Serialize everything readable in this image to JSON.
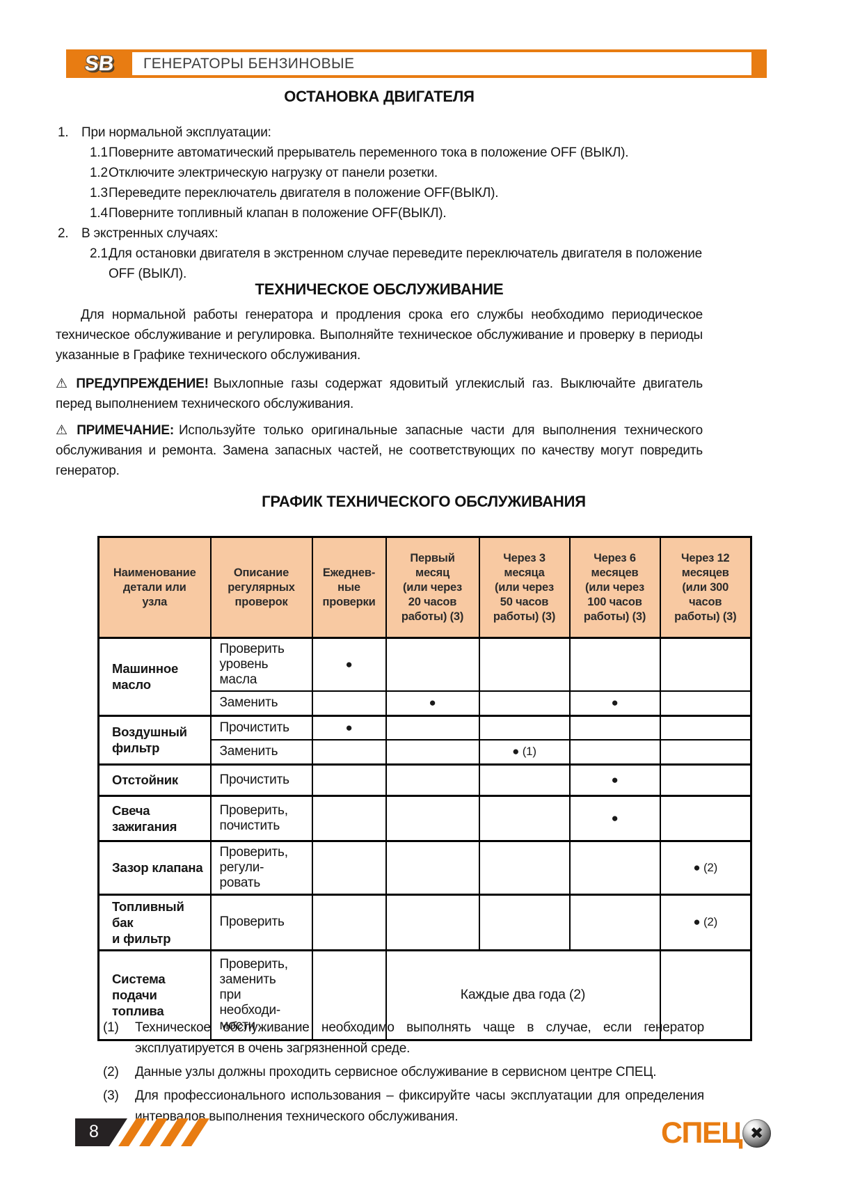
{
  "header": {
    "logo": "SB",
    "title": "ГЕНЕРАТОРЫ БЕНЗИНОВЫЕ"
  },
  "engine_stop": {
    "title": "ОСТАНОВКА ДВИГАТЕЛЯ",
    "items": [
      {
        "label": "1.",
        "text": "При нормальной эксплуатации:",
        "level": 0
      },
      {
        "label": "1.1",
        "text": "Поверните автоматический прерыватель переменного тока в положение OFF (ВЫКЛ).",
        "level": 1
      },
      {
        "label": "1.2",
        "text": "Отключите электрическую нагрузку от панели розетки.",
        "level": 1
      },
      {
        "label": "1.3",
        "text": "Переведите переключатель двигателя в положение OFF(ВЫКЛ).",
        "level": 1
      },
      {
        "label": "1.4",
        "text": "Поверните топливный клапан в положение OFF(ВЫКЛ).",
        "level": 1
      },
      {
        "label": "2.",
        "text": "В экстренных случаях:",
        "level": 0
      },
      {
        "label": "2.1",
        "text": "Для остановки двигателя в экстренном случае переведите переключатель двигателя в положение OFF (ВЫКЛ).",
        "level": 1
      }
    ]
  },
  "maintenance": {
    "title": "ТЕХНИЧЕСКОЕ ОБСЛУЖИВАНИЕ",
    "intro": "Для нормальной работы генератора и продления срока его службы необходимо периодическое техническое обслуживание и регулировка. Выполняйте техническое обслуживание и проверку в периоды указанные в Графике технического обслуживания.",
    "warning_icon": "⚠",
    "warning_label": "ПРЕДУПРЕЖДЕНИЕ!",
    "warning_text": "Выхлопные газы содержат ядовитый углекислый газ. Выключайте двигатель перед выполнением технического обслуживания.",
    "note_icon": "⚠",
    "note_label": "ПРИМЕЧАНИЕ:",
    "note_text": "Используйте только оригинальные запасные части для выполнения технического обслуживания и ремонта. Замена запасных частей, не соответствующих по качеству могут повредить генератор."
  },
  "schedule_table": {
    "title": "ГРАФИК ТЕХНИЧЕСКОГО ОБСЛУЖИВАНИЯ",
    "headers": [
      "Наименование\nдетали или\nузла",
      "Описание\nрегулярных\nпроверок",
      "Ежеднев-\nные\nпроверки",
      "Первый\nмесяц\n(или через\n20 часов\nработы) (3)",
      "Через 3\nмесяца\n(или через\n50 часов\nработы) (3)",
      "Через 6\nмесяцев\n(или через\n100 часов\nработы) (3)",
      "Через 12\nмесяцев\n(или 300\nчасов\nработы) (3)"
    ],
    "rows": [
      {
        "part": "Машинное\nмасло",
        "part_rowspan": 2,
        "desc": "Проверить\nуровень\nмасла",
        "marks": [
          "●",
          "",
          "",
          "",
          ""
        ],
        "group_start": true
      },
      {
        "desc": "Заменить",
        "marks": [
          "",
          "●",
          "",
          "●",
          ""
        ]
      },
      {
        "part": "Воздушный\nфильтр",
        "part_rowspan": 2,
        "desc": "Прочистить",
        "marks": [
          "●",
          "",
          "",
          "",
          ""
        ],
        "group_start": true
      },
      {
        "desc": "Заменить",
        "marks": [
          "",
          "",
          "● (1)",
          "",
          ""
        ]
      },
      {
        "part": "Отстойник",
        "desc": "Прочистить",
        "marks": [
          "",
          "",
          "",
          "●",
          ""
        ],
        "group_start": true
      },
      {
        "part": "Свеча\nзажигания",
        "desc": "Проверить,\nпочистить",
        "marks": [
          "",
          "",
          "",
          "●",
          ""
        ],
        "group_start": true
      },
      {
        "part": "Зазор клапана",
        "desc": "Проверить,\nрегули-\nровать",
        "marks": [
          "",
          "",
          "",
          "",
          "● (2)"
        ],
        "group_start": true
      },
      {
        "part": "Топливный бак\nи фильтр",
        "desc": "Проверить",
        "marks": [
          "",
          "",
          "",
          "",
          "● (2)"
        ],
        "group_start": true
      },
      {
        "part": "Система\nподачи\nтоплива",
        "desc": "Проверить,\nзаменить\nпри\nнеобходи-\nмости",
        "daily": "",
        "merged_text": "Каждые два года (2)",
        "last": "",
        "group_start": true
      }
    ]
  },
  "footnotes": [
    {
      "label": "(1)",
      "text": "Техническое обслуживание необходимо выполнять чаще в случае, если генератор эксплуатируется в очень загрязненной среде."
    },
    {
      "label": "(2)",
      "text": "Данные узлы должны проходить сервисное обслуживание в сервисном центре СПЕЦ."
    },
    {
      "label": "(3)",
      "text": "Для профессионального использования – фиксируйте часы эксплуатации для определения интервалов выполнения технического обслуживания."
    }
  ],
  "footer": {
    "page_number": "8",
    "brand": "СПЕЦ",
    "screw_icon": "✖"
  },
  "colors": {
    "accent_orange": "#e87c12",
    "table_header_bg": "#f8c9a2",
    "badge_black": "#262223"
  }
}
